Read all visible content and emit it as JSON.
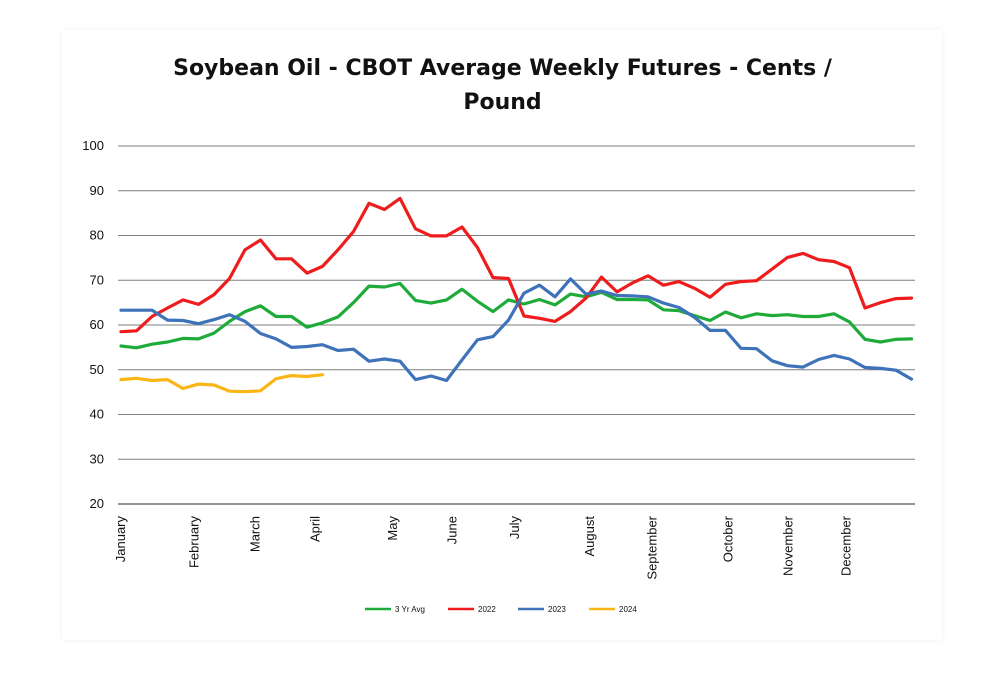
{
  "chart_data": {
    "type": "line",
    "title_line1": "Soybean Oil - CBOT Average Weekly Futures - Cents /",
    "title_line2": "Pound",
    "ylim": [
      20,
      100
    ],
    "yticks": [
      20,
      30,
      40,
      50,
      60,
      70,
      80,
      90,
      100
    ],
    "grid": true,
    "legend_position": "bottom",
    "x_week_count": 52,
    "month_labels": [
      {
        "label": "January",
        "week": 0
      },
      {
        "label": "February",
        "week": 5.8
      },
      {
        "label": "March",
        "week": 10.6
      },
      {
        "label": "April",
        "week": 15.3
      },
      {
        "label": "May",
        "week": 21.4
      },
      {
        "label": "June",
        "week": 26.1
      },
      {
        "label": "July",
        "week": 31.0
      },
      {
        "label": "August",
        "week": 36.9
      },
      {
        "label": "September",
        "week": 41.8
      },
      {
        "label": "October",
        "week": 47.8
      },
      {
        "label": "November",
        "week": 52.5
      },
      {
        "label": "December",
        "week": 57.1
      }
    ],
    "series": [
      {
        "name": "3 Yr Avg",
        "color": "#1fab3a",
        "values": [
          55.3,
          54.9,
          55.7,
          56.2,
          57.0,
          56.9,
          58.2,
          60.8,
          63.0,
          64.3,
          61.9,
          61.9,
          59.5,
          60.5,
          61.8,
          65.0,
          68.7,
          68.5,
          69.3,
          65.5,
          64.9,
          65.6,
          68.0,
          65.3,
          63.0,
          65.6,
          64.7,
          65.7,
          64.5,
          66.9,
          66.3,
          67.3,
          65.7,
          65.7,
          65.6,
          63.4,
          63.2,
          62.1,
          61.0,
          62.9,
          61.6,
          62.5,
          62.1,
          62.3,
          61.9,
          61.9,
          62.5,
          60.7,
          56.8,
          56.2,
          56.8,
          56.9
        ]
      },
      {
        "name": "2022",
        "color": "#ee1c1c",
        "values": [
          58.5,
          58.7,
          61.9,
          63.8,
          65.6,
          64.6,
          66.8,
          70.4,
          76.8,
          79.0,
          74.8,
          74.8,
          71.6,
          73.1,
          76.8,
          80.9,
          87.2,
          85.8,
          88.3,
          81.5,
          79.9,
          79.9,
          81.9,
          77.3,
          70.6,
          70.4,
          62.0,
          61.5,
          60.8,
          63.0,
          66.0,
          70.7,
          67.4,
          69.4,
          71.0,
          68.9,
          69.7,
          68.2,
          66.2,
          69.1,
          69.7,
          69.9,
          72.5,
          75.1,
          76.0,
          74.6,
          74.2,
          72.8,
          63.8,
          65.0,
          65.9,
          66.0
        ]
      },
      {
        "name": "2023",
        "color": "#3e72b9",
        "values": [
          63.3,
          63.3,
          63.3,
          61.1,
          61.0,
          60.3,
          61.2,
          62.3,
          60.8,
          58.1,
          56.9,
          55.0,
          55.2,
          55.6,
          54.3,
          54.6,
          51.9,
          52.4,
          51.9,
          47.8,
          48.6,
          47.6,
          52.2,
          56.7,
          57.4,
          61.1,
          67.1,
          68.9,
          66.3,
          70.3,
          66.9,
          67.6,
          66.6,
          66.5,
          66.3,
          64.9,
          63.9,
          61.7,
          58.8,
          58.8,
          54.8,
          54.7,
          52.0,
          50.9,
          50.6,
          52.3,
          53.2,
          52.4,
          50.5,
          50.3,
          49.9,
          47.9
        ]
      },
      {
        "name": "2024",
        "color": "#fbb616",
        "values": [
          47.8,
          48.1,
          47.6,
          47.8,
          45.8,
          46.8,
          46.6,
          45.2,
          45.1,
          45.3,
          48.0,
          48.7,
          48.5,
          48.9
        ]
      }
    ]
  }
}
